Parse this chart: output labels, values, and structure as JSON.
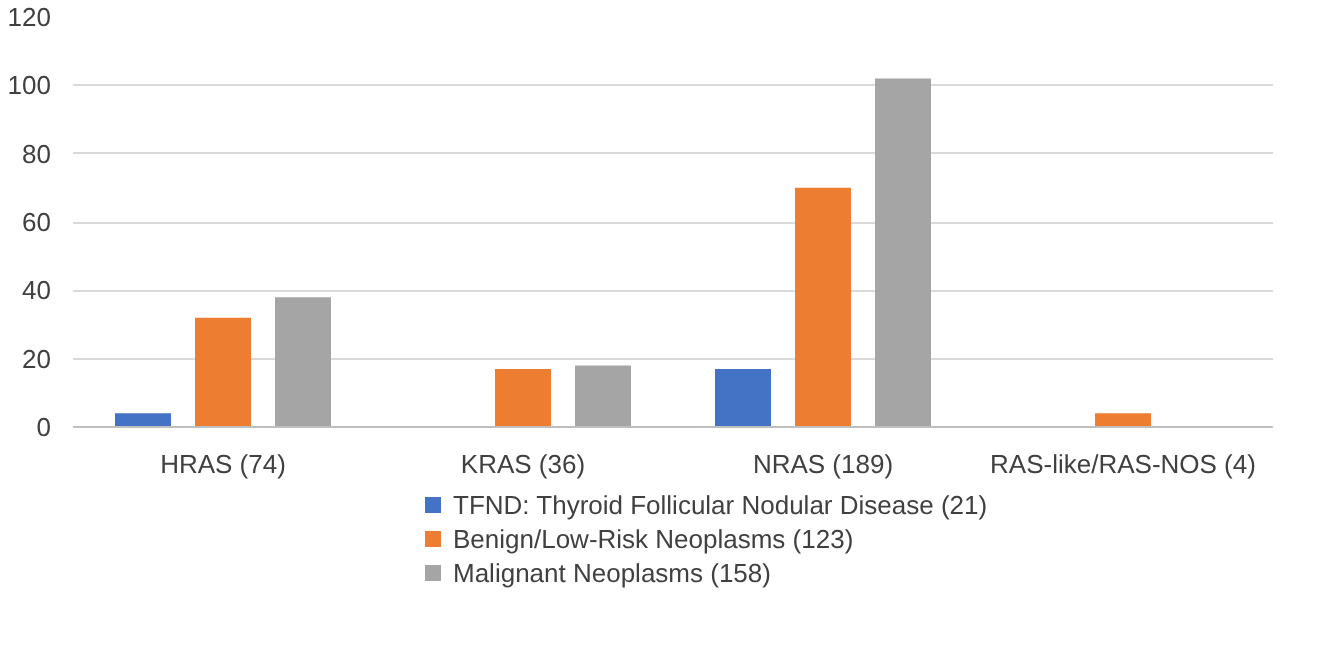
{
  "chart_data": {
    "type": "bar",
    "categories": [
      "HRAS (74)",
      "KRAS (36)",
      "NRAS (189)",
      "RAS-like/RAS-NOS (4)"
    ],
    "series": [
      {
        "name": "TFND: Thyroid Follicular Nodular Disease (21)",
        "color": "#4472c4",
        "values": [
          4,
          0,
          17,
          0
        ]
      },
      {
        "name": "Benign/Low-Risk Neoplasms (123)",
        "color": "#ed7d31",
        "values": [
          32,
          17,
          70,
          4
        ]
      },
      {
        "name": "Malignant Neoplasms (158)",
        "color": "#a5a5a5",
        "values": [
          38,
          18,
          102,
          0
        ]
      }
    ],
    "ylim": [
      0,
      120
    ],
    "yticks": [
      0,
      20,
      40,
      60,
      80,
      100,
      120
    ],
    "grid": "y",
    "legend": "bottom"
  }
}
